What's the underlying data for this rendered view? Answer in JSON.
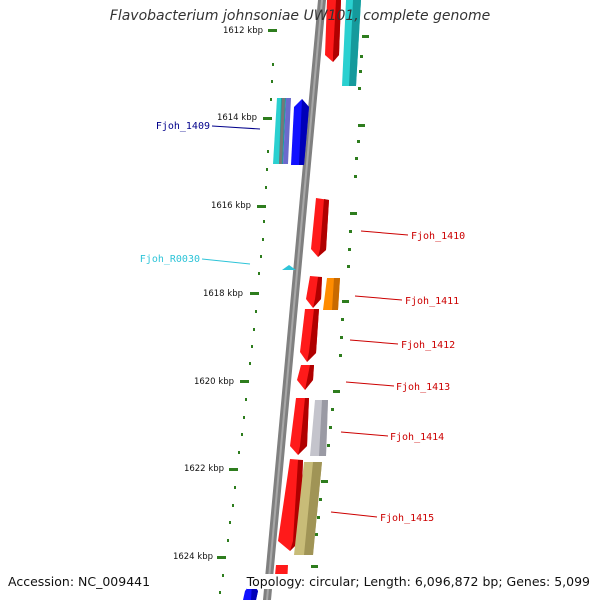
{
  "header": {
    "title": "Flavobacterium johnsoniae UW101, complete genome"
  },
  "footer": {
    "accession": "Accession: NC_009441",
    "summary": "Topology: circular; Length: 6,096,872 bp; Genes: 5,099"
  },
  "scale": {
    "unit": "kbp",
    "ticks": [
      {
        "label": "1612 kbp"
      },
      {
        "label": "1614 kbp"
      },
      {
        "label": "1616 kbp"
      },
      {
        "label": "1618 kbp"
      },
      {
        "label": "1620 kbp"
      },
      {
        "label": "1622 kbp"
      },
      {
        "label": "1624 kbp"
      }
    ]
  },
  "colors": {
    "backbone": "#808080",
    "tick": "#2e7d1e",
    "forward_gene": "#ff1a1a",
    "cds_cyan": "#2ad0d0",
    "cds_blue": "#1010ff",
    "cds_orange": "#ff8c00",
    "cds_grey": "#b8b8c0",
    "cds_khaki": "#c8bc78",
    "label_blue": "#00008b",
    "label_cyan": "#2ec4d8",
    "label_red": "#cc0000"
  },
  "gene_labels": [
    {
      "id": "Fjoh_1409",
      "color": "#00008b",
      "side": "left"
    },
    {
      "id": "Fjoh_R0030",
      "color": "#2ec4d8",
      "side": "left"
    },
    {
      "id": "Fjoh_1410",
      "color": "#cc0000",
      "side": "right"
    },
    {
      "id": "Fjoh_1411",
      "color": "#cc0000",
      "side": "right"
    },
    {
      "id": "Fjoh_1412",
      "color": "#cc0000",
      "side": "right"
    },
    {
      "id": "Fjoh_1413",
      "color": "#cc0000",
      "side": "right"
    },
    {
      "id": "Fjoh_1414",
      "color": "#cc0000",
      "side": "right"
    },
    {
      "id": "Fjoh_1415",
      "color": "#cc0000",
      "side": "right"
    }
  ]
}
